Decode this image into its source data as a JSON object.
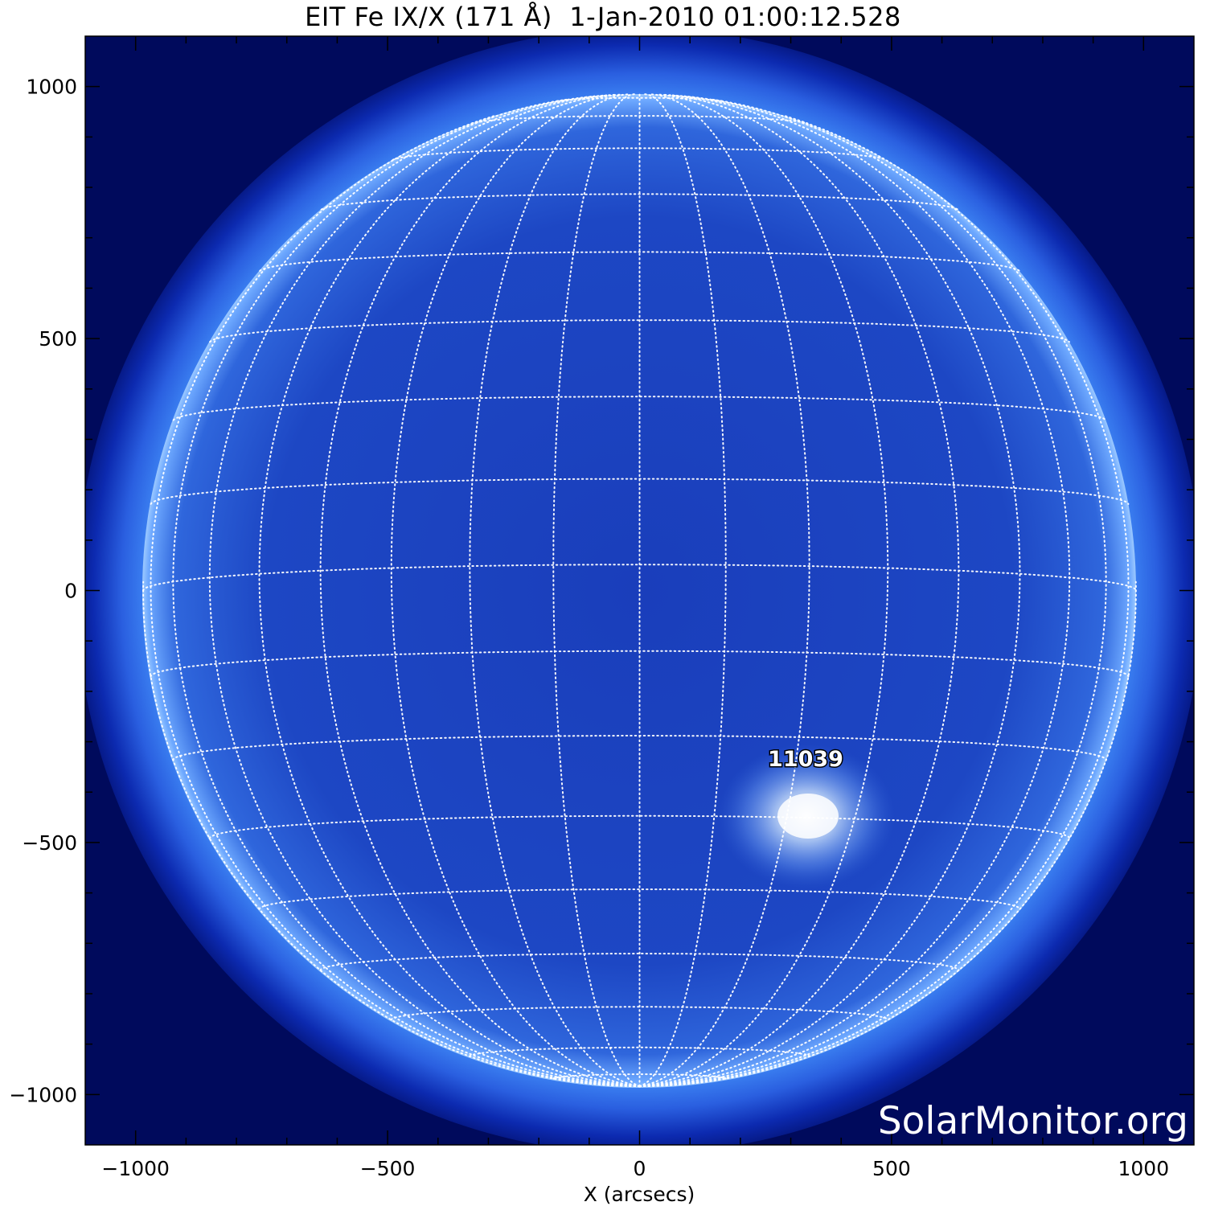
{
  "title": "EIT Fe IX/X (171 Å)  1-Jan-2010 01:00:12.528",
  "x_axis": {
    "label": "X (arcsecs)",
    "range": [
      -1100,
      1100
    ],
    "major_ticks": [
      -1000,
      -500,
      0,
      500,
      1000
    ],
    "tick_labels": [
      "−1000",
      "−500",
      "0",
      "500",
      "1000"
    ]
  },
  "y_axis": {
    "range": [
      -1100,
      1100
    ],
    "major_ticks": [
      -1000,
      -500,
      0,
      500,
      1000
    ],
    "tick_labels": [
      "−1000",
      "−500",
      "0",
      "500",
      "1000"
    ]
  },
  "solar_disk": {
    "radius_arcsec": 985,
    "heliographic_grid_spacing_deg": 10
  },
  "active_regions": [
    {
      "number": "11039",
      "label_x": 330,
      "label_y": -330,
      "x": 330,
      "y": -440
    }
  ],
  "watermark": "SolarMonitor.org",
  "colors": {
    "background_sky": "#000a5c",
    "disk": "#1a43bf",
    "limb": "#7fb7ff",
    "grid": "#ffffff",
    "axes": "#000000"
  }
}
